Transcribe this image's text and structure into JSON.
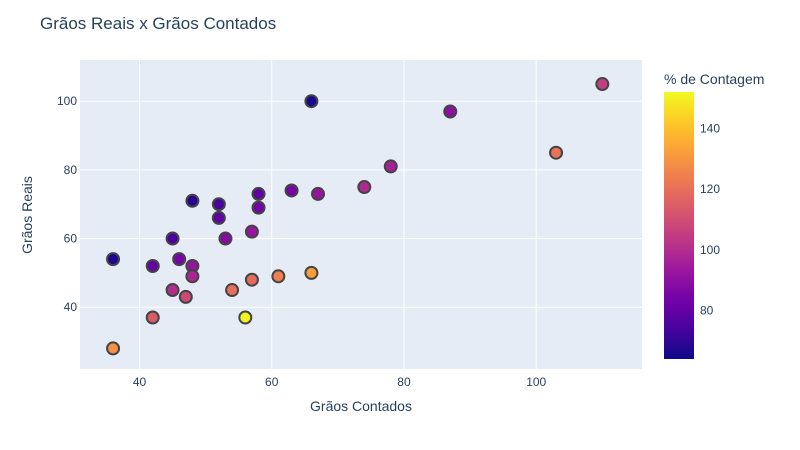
{
  "chart_data": {
    "type": "scatter",
    "title": "Grãos Reais x Grãos Contados",
    "xlabel": "Grãos Contados",
    "ylabel": "Grãos Reais",
    "xlim": [
      31,
      116
    ],
    "ylim": [
      22,
      112
    ],
    "xticks": [
      40,
      60,
      80,
      100
    ],
    "yticks": [
      40,
      60,
      80,
      100
    ],
    "grid": true,
    "colorbar": {
      "title": "% de Contagem",
      "range": [
        64,
        152
      ],
      "ticks": [
        80,
        100,
        120,
        140
      ],
      "colorscale": "plasma"
    },
    "points": [
      {
        "x": 36,
        "y": 28,
        "pct": 129
      },
      {
        "x": 36,
        "y": 54,
        "pct": 67
      },
      {
        "x": 42,
        "y": 37,
        "pct": 114
      },
      {
        "x": 42,
        "y": 52,
        "pct": 81
      },
      {
        "x": 45,
        "y": 45,
        "pct": 100
      },
      {
        "x": 45,
        "y": 60,
        "pct": 75
      },
      {
        "x": 46,
        "y": 54,
        "pct": 85
      },
      {
        "x": 47,
        "y": 43,
        "pct": 109
      },
      {
        "x": 48,
        "y": 71,
        "pct": 68
      },
      {
        "x": 48,
        "y": 52,
        "pct": 92
      },
      {
        "x": 48,
        "y": 49,
        "pct": 98
      },
      {
        "x": 52,
        "y": 70,
        "pct": 74
      },
      {
        "x": 52,
        "y": 66,
        "pct": 79
      },
      {
        "x": 53,
        "y": 60,
        "pct": 88
      },
      {
        "x": 54,
        "y": 45,
        "pct": 120
      },
      {
        "x": 56,
        "y": 37,
        "pct": 151
      },
      {
        "x": 57,
        "y": 62,
        "pct": 92
      },
      {
        "x": 57,
        "y": 48,
        "pct": 119
      },
      {
        "x": 58,
        "y": 73,
        "pct": 79
      },
      {
        "x": 58,
        "y": 69,
        "pct": 84
      },
      {
        "x": 61,
        "y": 49,
        "pct": 124
      },
      {
        "x": 63,
        "y": 74,
        "pct": 85
      },
      {
        "x": 66,
        "y": 100,
        "pct": 66
      },
      {
        "x": 66,
        "y": 50,
        "pct": 132
      },
      {
        "x": 67,
        "y": 73,
        "pct": 92
      },
      {
        "x": 74,
        "y": 75,
        "pct": 99
      },
      {
        "x": 78,
        "y": 81,
        "pct": 96
      },
      {
        "x": 87,
        "y": 97,
        "pct": 90
      },
      {
        "x": 103,
        "y": 85,
        "pct": 121
      },
      {
        "x": 110,
        "y": 105,
        "pct": 105
      }
    ]
  },
  "colors": {
    "plot_bg": "#e5ecf6",
    "grid": "#ffffff",
    "text": "#2a3f5f",
    "marker_line": "#444444"
  }
}
